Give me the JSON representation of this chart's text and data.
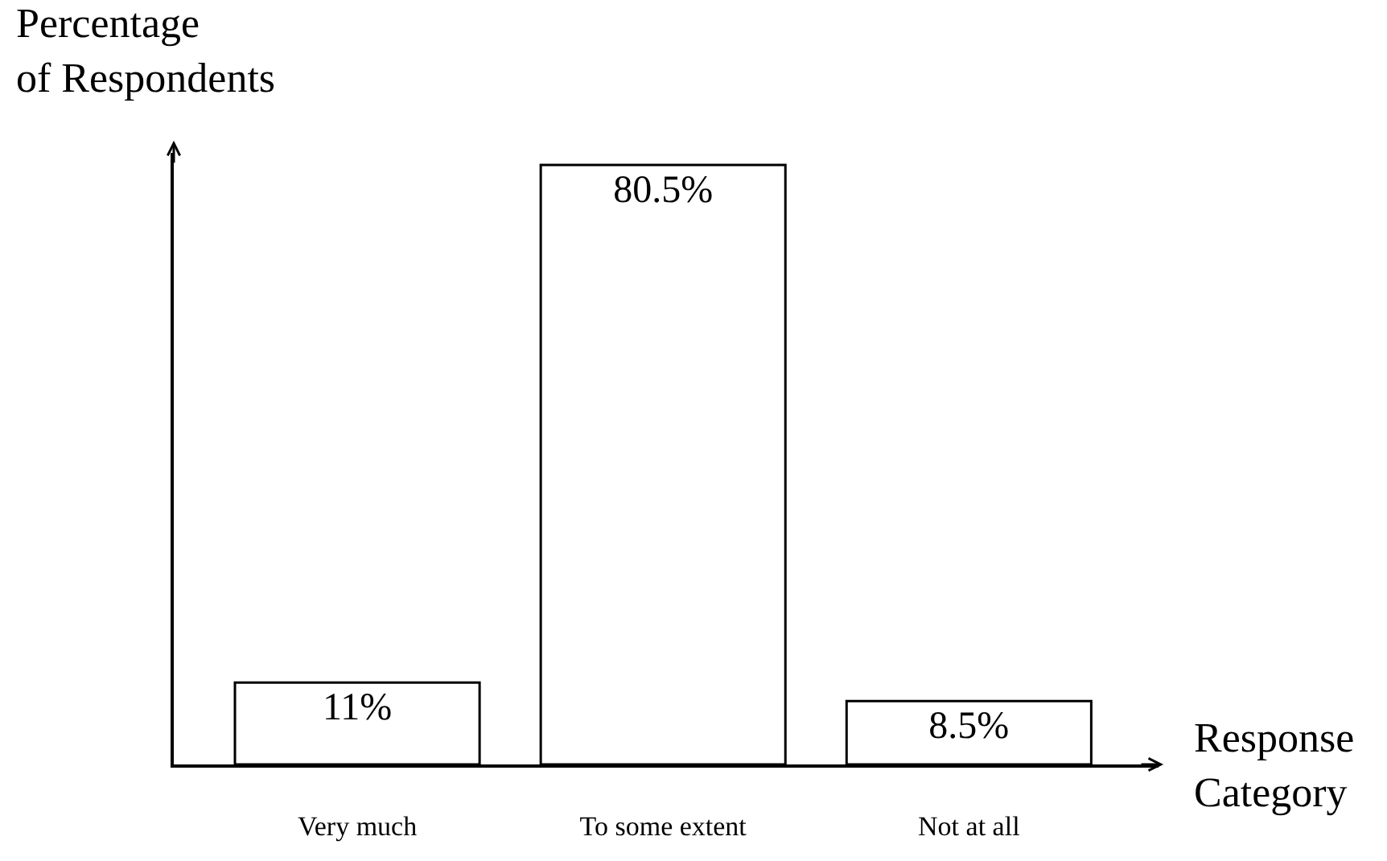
{
  "chart_data": {
    "type": "bar",
    "ylabel": "Percentage\nof Respondents",
    "xlabel": "Response\nCategory",
    "categories": [
      "Very much",
      "To some extent",
      "Not at all"
    ],
    "values": [
      11,
      80.5,
      8.5
    ],
    "value_labels": [
      "11%",
      "80.5%",
      "8.5%"
    ],
    "color": "#ffffff",
    "tick_labels": "x",
    "legend": false
  }
}
